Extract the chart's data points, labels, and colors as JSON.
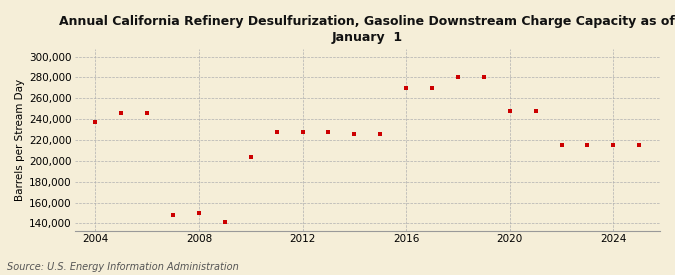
{
  "title": "Annual California Refinery Desulfurization, Gasoline Downstream Charge Capacity as of\nJanuary  1",
  "ylabel": "Barrels per Stream Day",
  "source": "Source: U.S. Energy Information Administration",
  "background_color": "#f5eed8",
  "plot_bg_color": "#f5eed8",
  "marker_color": "#cc0000",
  "x_data": [
    2004,
    2005,
    2006,
    2007,
    2008,
    2009,
    2010,
    2011,
    2012,
    2013,
    2014,
    2015,
    2016,
    2017,
    2018,
    2019,
    2020,
    2021,
    2022,
    2023,
    2024,
    2025
  ],
  "y_data": [
    237000,
    246000,
    246000,
    148000,
    150000,
    141000,
    204000,
    228000,
    228000,
    228000,
    226000,
    226000,
    270000,
    270000,
    280000,
    280000,
    248000,
    248000,
    215000,
    215000,
    215000,
    215000
  ],
  "xlim": [
    2003.2,
    2025.8
  ],
  "ylim": [
    133000,
    307000
  ],
  "yticks": [
    140000,
    160000,
    180000,
    200000,
    220000,
    240000,
    260000,
    280000,
    300000
  ],
  "xticks": [
    2004,
    2008,
    2012,
    2016,
    2020,
    2024
  ],
  "grid_color": "#b0b0b0",
  "title_fontsize": 9,
  "ylabel_fontsize": 7.5,
  "tick_fontsize": 7.5,
  "source_fontsize": 7
}
